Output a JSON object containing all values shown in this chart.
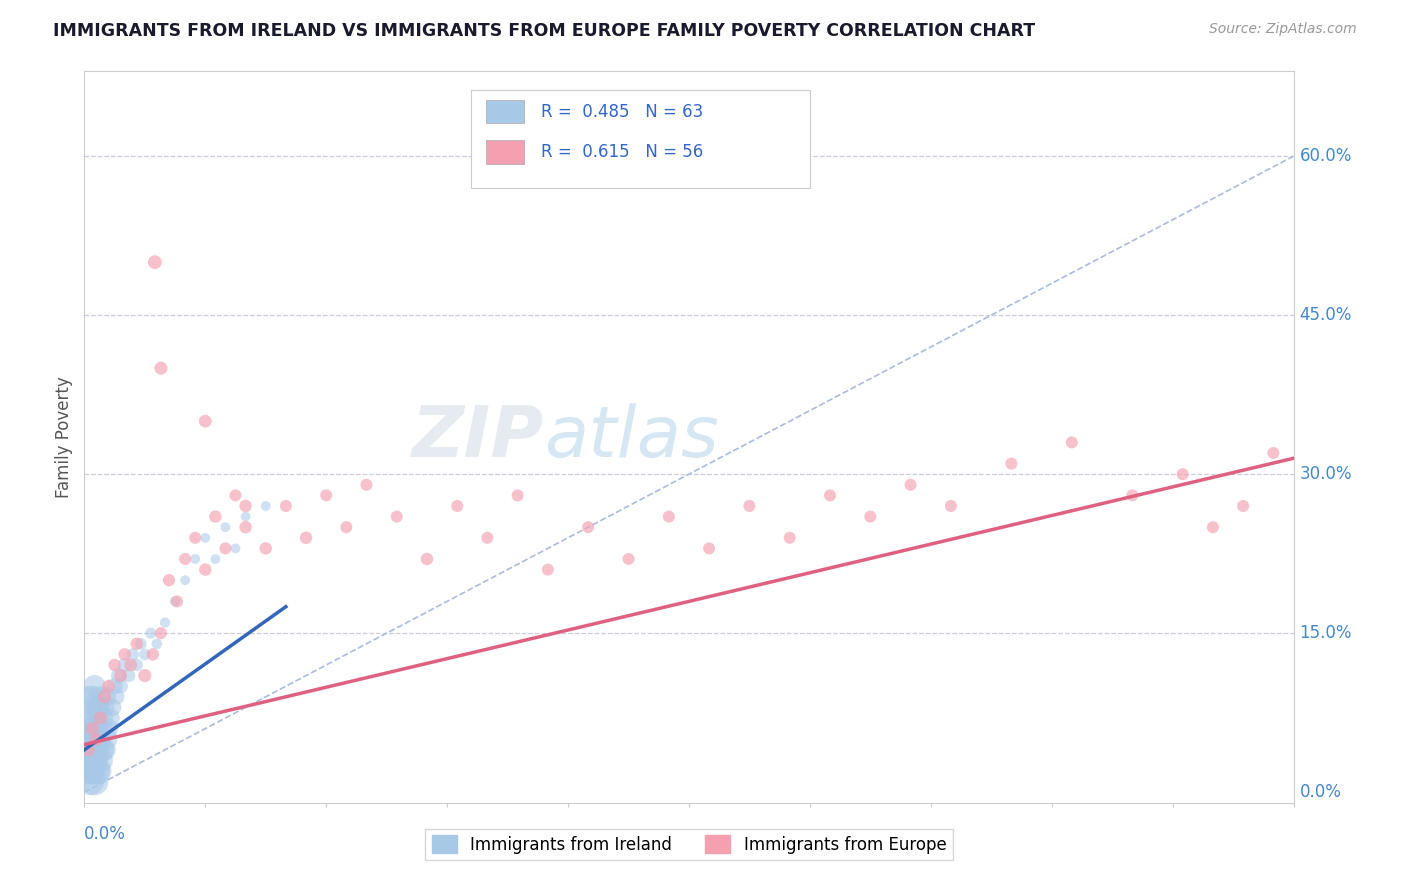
{
  "title": "IMMIGRANTS FROM IRELAND VS IMMIGRANTS FROM EUROPE FAMILY POVERTY CORRELATION CHART",
  "source": "Source: ZipAtlas.com",
  "ylabel": "Family Poverty",
  "xlim": [
    0.0,
    0.6
  ],
  "ylim": [
    -0.01,
    0.68
  ],
  "right_ytick_positions": [
    0.0,
    0.15,
    0.3,
    0.45,
    0.6
  ],
  "right_yticklabels": [
    "0.0%",
    "15.0%",
    "30.0%",
    "45.0%",
    "60.0%"
  ],
  "legend_r_ireland": "0.485",
  "legend_n_ireland": "63",
  "legend_r_europe": "0.615",
  "legend_n_europe": "56",
  "blue_scatter_color": "#a8c8e8",
  "pink_scatter_color": "#f4a0b0",
  "blue_line_color": "#3366bb",
  "pink_line_color": "#e06080",
  "diag_line_color": "#aabbdd",
  "grid_line_color": "#ccccdd",
  "background_color": "#ffffff",
  "title_color": "#1a1a2e",
  "source_color": "#999999",
  "axis_label_color": "#555555",
  "right_label_color": "#4488cc",
  "bottom_label_color": "#4488cc",
  "legend_text_color": "#3366cc",
  "watermark_color": "#c8dff0",
  "ireland_x": [
    0.001,
    0.001,
    0.001,
    0.001,
    0.002,
    0.002,
    0.002,
    0.002,
    0.002,
    0.003,
    0.003,
    0.003,
    0.003,
    0.004,
    0.004,
    0.004,
    0.004,
    0.005,
    0.005,
    0.005,
    0.005,
    0.005,
    0.006,
    0.006,
    0.006,
    0.006,
    0.007,
    0.007,
    0.007,
    0.008,
    0.008,
    0.008,
    0.009,
    0.009,
    0.01,
    0.01,
    0.011,
    0.011,
    0.012,
    0.013,
    0.014,
    0.015,
    0.016,
    0.017,
    0.018,
    0.02,
    0.022,
    0.024,
    0.026,
    0.028,
    0.03,
    0.033,
    0.036,
    0.04,
    0.045,
    0.05,
    0.055,
    0.06,
    0.065,
    0.07,
    0.075,
    0.08,
    0.09
  ],
  "ireland_y": [
    0.02,
    0.03,
    0.04,
    0.06,
    0.02,
    0.03,
    0.05,
    0.07,
    0.09,
    0.01,
    0.03,
    0.05,
    0.08,
    0.02,
    0.04,
    0.06,
    0.09,
    0.01,
    0.03,
    0.05,
    0.07,
    0.1,
    0.02,
    0.04,
    0.06,
    0.08,
    0.02,
    0.05,
    0.08,
    0.03,
    0.06,
    0.09,
    0.04,
    0.07,
    0.04,
    0.08,
    0.05,
    0.09,
    0.06,
    0.07,
    0.08,
    0.1,
    0.09,
    0.11,
    0.1,
    0.12,
    0.11,
    0.13,
    0.12,
    0.14,
    0.13,
    0.15,
    0.14,
    0.16,
    0.18,
    0.2,
    0.22,
    0.24,
    0.22,
    0.25,
    0.23,
    0.26,
    0.27
  ],
  "ireland_sizes": [
    300,
    280,
    250,
    220,
    350,
    320,
    290,
    260,
    230,
    380,
    350,
    310,
    270,
    360,
    330,
    300,
    260,
    400,
    370,
    340,
    300,
    260,
    380,
    350,
    310,
    270,
    350,
    310,
    270,
    320,
    280,
    240,
    280,
    240,
    260,
    210,
    240,
    190,
    200,
    180,
    160,
    140,
    130,
    120,
    110,
    100,
    90,
    80,
    80,
    70,
    70,
    65,
    60,
    55,
    55,
    50,
    50,
    50,
    50,
    50,
    50,
    50,
    50
  ],
  "europe_x": [
    0.002,
    0.004,
    0.006,
    0.008,
    0.01,
    0.012,
    0.015,
    0.018,
    0.02,
    0.023,
    0.026,
    0.03,
    0.034,
    0.038,
    0.042,
    0.046,
    0.05,
    0.055,
    0.06,
    0.065,
    0.07,
    0.075,
    0.08,
    0.09,
    0.1,
    0.11,
    0.12,
    0.13,
    0.14,
    0.155,
    0.17,
    0.185,
    0.2,
    0.215,
    0.23,
    0.25,
    0.27,
    0.29,
    0.31,
    0.33,
    0.35,
    0.37,
    0.39,
    0.41,
    0.43,
    0.46,
    0.49,
    0.52,
    0.545,
    0.56,
    0.575,
    0.59,
    0.035,
    0.038,
    0.06,
    0.08
  ],
  "europe_y": [
    0.04,
    0.06,
    0.05,
    0.07,
    0.09,
    0.1,
    0.12,
    0.11,
    0.13,
    0.12,
    0.14,
    0.11,
    0.13,
    0.15,
    0.2,
    0.18,
    0.22,
    0.24,
    0.21,
    0.26,
    0.23,
    0.28,
    0.25,
    0.23,
    0.27,
    0.24,
    0.28,
    0.25,
    0.29,
    0.26,
    0.22,
    0.27,
    0.24,
    0.28,
    0.21,
    0.25,
    0.22,
    0.26,
    0.23,
    0.27,
    0.24,
    0.28,
    0.26,
    0.29,
    0.27,
    0.31,
    0.33,
    0.28,
    0.3,
    0.25,
    0.27,
    0.32,
    0.5,
    0.4,
    0.35,
    0.27
  ],
  "europe_sizes": [
    90,
    90,
    90,
    90,
    90,
    85,
    80,
    85,
    80,
    85,
    80,
    90,
    80,
    75,
    80,
    75,
    75,
    75,
    80,
    80,
    75,
    75,
    80,
    80,
    75,
    80,
    75,
    75,
    75,
    75,
    80,
    75,
    75,
    75,
    75,
    75,
    75,
    75,
    75,
    75,
    75,
    75,
    75,
    75,
    75,
    75,
    75,
    75,
    75,
    75,
    75,
    75,
    100,
    90,
    85,
    80
  ],
  "ireland_line_x": [
    0.0,
    0.1
  ],
  "ireland_line_y": [
    0.04,
    0.175
  ],
  "europe_line_x": [
    0.0,
    0.6
  ],
  "europe_line_y": [
    0.045,
    0.315
  ]
}
